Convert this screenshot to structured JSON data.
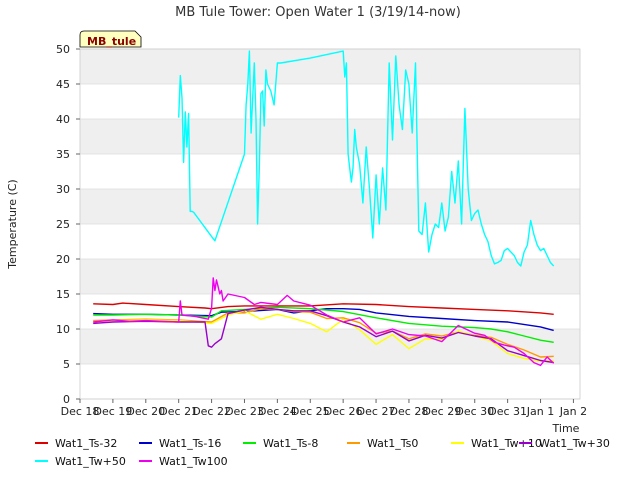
{
  "chart_data": {
    "type": "line",
    "title": "MB Tule Tower: Open Water 1 (3/19/14-now)",
    "xlabel": "Time",
    "ylabel": "Temperature (C)",
    "ylim": [
      0,
      50
    ],
    "xlim": [
      0,
      15.2
    ],
    "yticks": [
      0,
      5,
      10,
      15,
      20,
      25,
      30,
      35,
      40,
      45,
      50
    ],
    "xticks": [
      {
        "value": 0,
        "label": "Dec 18"
      },
      {
        "value": 1,
        "label": "Dec 19"
      },
      {
        "value": 2,
        "label": "Dec 20"
      },
      {
        "value": 3,
        "label": "Dec 21"
      },
      {
        "value": 4,
        "label": "Dec 22"
      },
      {
        "value": 5,
        "label": "Dec 23"
      },
      {
        "value": 6,
        "label": "Dec 24"
      },
      {
        "value": 7,
        "label": "Dec 25"
      },
      {
        "value": 8,
        "label": "Dec 26"
      },
      {
        "value": 9,
        "label": "Dec 27"
      },
      {
        "value": 10,
        "label": "Dec 28"
      },
      {
        "value": 11,
        "label": "Dec 29"
      },
      {
        "value": 12,
        "label": "Dec 30"
      },
      {
        "value": 13,
        "label": "Dec 31"
      },
      {
        "value": 14,
        "label": "Jan 1"
      },
      {
        "value": 15,
        "label": "Jan 2"
      }
    ],
    "grid": "horizontal bands",
    "badge": "MB_tule",
    "series": [
      {
        "name": "Wat1_Ts-32",
        "color": "#dd0000",
        "x": [
          0.4,
          1.0,
          1.3,
          2.0,
          3.0,
          3.8,
          4.0,
          4.5,
          5.0,
          6.0,
          7.0,
          8.0,
          9.0,
          10.0,
          11.0,
          12.0,
          13.0,
          14.0,
          14.4
        ],
        "y": [
          13.6,
          13.5,
          13.7,
          13.5,
          13.2,
          13.0,
          12.9,
          13.2,
          13.3,
          13.3,
          13.3,
          13.6,
          13.5,
          13.2,
          13.0,
          12.8,
          12.6,
          12.3,
          12.1
        ]
      },
      {
        "name": "Wat1_Ts-16",
        "color": "#0000cc",
        "x": [
          0.4,
          1.0,
          2.0,
          3.0,
          4.0,
          4.3,
          5.0,
          6.0,
          6.5,
          7.0,
          7.5,
          8.0,
          8.5,
          9.0,
          10.0,
          11.0,
          12.0,
          13.0,
          14.0,
          14.4
        ],
        "y": [
          12.2,
          12.1,
          12.1,
          12.0,
          11.9,
          12.4,
          12.5,
          12.8,
          12.3,
          12.6,
          12.9,
          12.9,
          12.8,
          12.3,
          11.8,
          11.5,
          11.2,
          11.0,
          10.3,
          9.8
        ]
      },
      {
        "name": "Wat1_Ts-8",
        "color": "#00ee00",
        "x": [
          0.4,
          1.0,
          2.0,
          3.0,
          4.0,
          4.3,
          5.0,
          6.0,
          7.0,
          7.5,
          8.0,
          9.0,
          10.0,
          11.0,
          12.0,
          12.5,
          13.0,
          13.5,
          14.0,
          14.4
        ],
        "y": [
          12.0,
          12.0,
          12.1,
          12.0,
          11.7,
          12.6,
          12.8,
          13.1,
          12.9,
          12.7,
          12.5,
          11.6,
          10.8,
          10.4,
          10.2,
          10.0,
          9.6,
          9.0,
          8.4,
          8.1
        ]
      },
      {
        "name": "Wat1_Ts0",
        "color": "#ff9900",
        "x": [
          0.4,
          1.0,
          2.0,
          3.0,
          4.0,
          4.5,
          5.0,
          5.5,
          6.0,
          6.5,
          7.0,
          7.5,
          8.0,
          8.5,
          9.0,
          9.5,
          10.0,
          10.5,
          11.0,
          11.5,
          12.0,
          12.5,
          13.0,
          13.5,
          14.0,
          14.4
        ],
        "y": [
          11.2,
          11.3,
          11.4,
          11.3,
          11.0,
          12.3,
          12.3,
          12.9,
          12.8,
          12.5,
          12.4,
          11.5,
          11.6,
          10.9,
          9.4,
          9.7,
          8.6,
          9.3,
          9.0,
          9.6,
          9.1,
          8.8,
          7.8,
          7.0,
          6.0,
          6.1
        ]
      },
      {
        "name": "Wat1_Tw+10",
        "color": "#ffff00",
        "x": [
          0.4,
          1.0,
          2.0,
          3.0,
          4.0,
          4.5,
          5.0,
          5.5,
          6.0,
          6.5,
          7.0,
          7.5,
          8.0,
          8.5,
          9.0,
          9.5,
          10.0,
          10.5,
          11.0,
          11.5,
          12.0,
          12.5,
          13.0,
          13.5,
          14.0,
          14.4
        ],
        "y": [
          11.0,
          11.2,
          11.3,
          11.2,
          10.8,
          12.0,
          12.6,
          11.4,
          12.1,
          11.5,
          10.8,
          9.6,
          11.4,
          9.9,
          7.8,
          9.2,
          7.2,
          8.6,
          8.5,
          9.7,
          9.0,
          8.3,
          6.5,
          5.8,
          5.4,
          5.5
        ]
      },
      {
        "name": "Wat1_Tw+30",
        "color": "#9900cc",
        "x": [
          0.4,
          1.0,
          2.0,
          3.0,
          3.8,
          3.9,
          4.0,
          4.1,
          4.3,
          4.5,
          5.0,
          5.5,
          6.0,
          6.5,
          7.0,
          7.5,
          8.0,
          8.5,
          9.0,
          9.5,
          10.0,
          10.5,
          11.0,
          11.5,
          12.0,
          12.5,
          13.0,
          13.5,
          14.0,
          14.4
        ],
        "y": [
          10.8,
          11.0,
          11.1,
          11.0,
          11.0,
          7.6,
          7.4,
          7.9,
          8.6,
          12.2,
          12.7,
          13.1,
          12.8,
          12.6,
          12.6,
          11.9,
          11.0,
          10.3,
          8.9,
          9.7,
          8.3,
          9.1,
          8.7,
          9.5,
          9.0,
          8.6,
          6.9,
          6.2,
          5.5,
          5.2
        ]
      },
      {
        "name": "Wat1_Tw+50",
        "color": "#00ffff",
        "x": [
          3.0,
          3.05,
          3.1,
          3.15,
          3.2,
          3.25,
          3.3,
          3.35,
          3.4,
          3.45,
          4.0,
          4.1,
          5.0,
          5.05,
          5.1,
          5.15,
          5.2,
          5.3,
          5.35,
          5.4,
          5.45,
          5.5,
          5.55,
          5.6,
          5.65,
          5.7,
          5.8,
          5.9,
          6.0,
          6.1,
          7.0,
          8.0,
          8.05,
          8.1,
          8.15,
          8.2,
          8.25,
          8.3,
          8.35,
          8.4,
          8.5,
          8.6,
          8.7,
          8.8,
          8.9,
          9.0,
          9.1,
          9.2,
          9.3,
          9.4,
          9.5,
          9.6,
          9.7,
          9.8,
          9.9,
          10.0,
          10.1,
          10.2,
          10.3,
          10.4,
          10.5,
          10.6,
          10.7,
          10.8,
          10.9,
          11.0,
          11.1,
          11.2,
          11.3,
          11.4,
          11.5,
          11.6,
          11.7,
          11.8,
          11.9,
          12.0,
          12.1,
          12.2,
          12.3,
          12.4,
          12.5,
          12.6,
          12.7,
          12.8,
          12.9,
          13.0,
          13.1,
          13.2,
          13.3,
          13.4,
          13.5,
          13.6,
          13.7,
          13.8,
          13.9,
          14.0,
          14.1,
          14.2,
          14.3,
          14.4
        ],
        "y": [
          40.2,
          46.2,
          43.0,
          33.8,
          41.0,
          36.0,
          40.8,
          26.8,
          26.8,
          26.7,
          23.2,
          22.6,
          35.0,
          42.0,
          45.0,
          49.7,
          38.0,
          48.0,
          40.0,
          25.0,
          33.0,
          43.6,
          44.0,
          39.0,
          47.0,
          45.0,
          44.0,
          42.0,
          48.0,
          48.0,
          48.7,
          49.7,
          46.0,
          48.0,
          35.0,
          33.0,
          31.0,
          33.0,
          38.5,
          36.0,
          33.5,
          28.0,
          36.0,
          30.0,
          23.0,
          32.0,
          25.0,
          33.0,
          27.0,
          48.0,
          37.0,
          49.0,
          42.0,
          38.5,
          47.0,
          45.0,
          38.0,
          48.0,
          24.0,
          23.5,
          28.0,
          21.0,
          23.5,
          25.0,
          24.5,
          28.0,
          24.0,
          26.0,
          32.5,
          28.0,
          34.0,
          25.0,
          41.5,
          30.0,
          25.5,
          26.5,
          27.0,
          25.0,
          23.5,
          22.5,
          20.5,
          19.3,
          19.5,
          19.8,
          21.2,
          21.5,
          21.0,
          20.5,
          19.5,
          19.0,
          21.0,
          22.0,
          25.5,
          23.5,
          22.0,
          21.2,
          21.5,
          20.5,
          19.5,
          19.0
        ]
      },
      {
        "name": "Wat1_Tw100",
        "color": "#ee00ee",
        "x": [
          0.4,
          1.0,
          1.5,
          2.0,
          2.5,
          3.0,
          3.05,
          3.1,
          3.5,
          3.9,
          4.0,
          4.05,
          4.1,
          4.15,
          4.2,
          4.25,
          4.3,
          4.35,
          4.5,
          5.0,
          5.3,
          5.5,
          6.0,
          6.3,
          6.5,
          7.0,
          7.5,
          8.0,
          8.5,
          9.0,
          9.5,
          10.0,
          10.5,
          11.0,
          11.5,
          12.0,
          12.3,
          12.6,
          12.9,
          13.2,
          13.5,
          13.8,
          14.0,
          14.2,
          14.4
        ],
        "y": [
          11.0,
          11.3,
          11.1,
          11.2,
          11.1,
          11.0,
          14.0,
          12.0,
          11.8,
          11.4,
          13.0,
          17.3,
          15.5,
          17.0,
          16.0,
          15.0,
          15.5,
          14.0,
          15.0,
          14.5,
          13.5,
          13.8,
          13.5,
          14.8,
          14.0,
          13.4,
          12.0,
          11.0,
          11.6,
          9.3,
          10.0,
          9.2,
          9.0,
          8.2,
          10.5,
          9.4,
          9.1,
          8.1,
          7.7,
          7.4,
          6.5,
          5.2,
          4.8,
          6.0,
          5.1
        ]
      }
    ]
  }
}
